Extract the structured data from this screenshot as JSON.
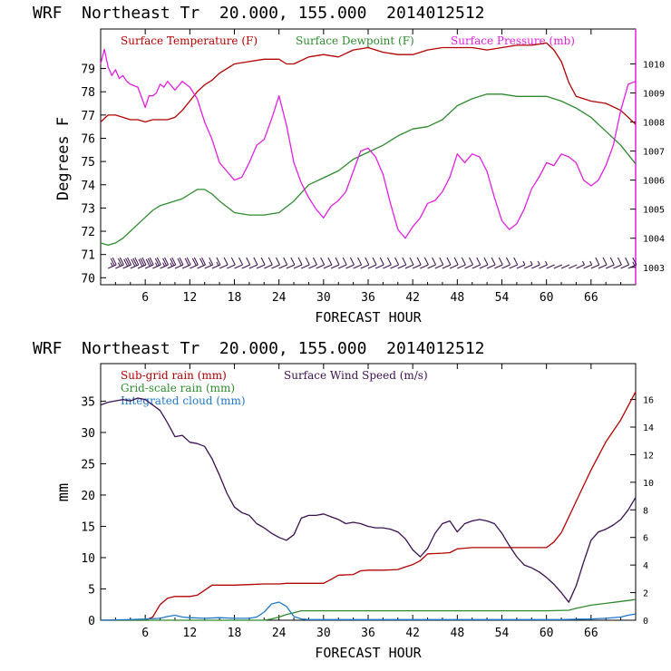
{
  "chart_data": [
    {
      "type": "line",
      "title": "WRF  Northeast Tr  20.000, 155.000  2014012512",
      "xlabel": "FORECAST HOUR",
      "ylabel": "Degrees F",
      "xlim": [
        0,
        72
      ],
      "ylim": [
        69.7,
        80.7
      ],
      "y2lim": [
        1002.4,
        1011.2
      ],
      "x_ticks": [
        6,
        12,
        18,
        24,
        30,
        36,
        42,
        48,
        54,
        60,
        66
      ],
      "y_ticks": [
        70,
        71,
        72,
        73,
        74,
        75,
        76,
        77,
        78,
        79
      ],
      "y2_ticks": [
        1003,
        1004,
        1005,
        1006,
        1007,
        1008,
        1009,
        1010
      ],
      "series": [
        {
          "name": "Surface Temperature (F)",
          "color": "#b30000",
          "axis": "left",
          "x": [
            0,
            1,
            2,
            3,
            4,
            5,
            6,
            7,
            8,
            9,
            10,
            11,
            12,
            13,
            14,
            15,
            16,
            18,
            20,
            22,
            24,
            25,
            26,
            28,
            30,
            32,
            34,
            36,
            38,
            40,
            42,
            44,
            46,
            48,
            50,
            52,
            54,
            56,
            58,
            60,
            61,
            62,
            63,
            64,
            66,
            68,
            70,
            72
          ],
          "y": [
            76.7,
            77.0,
            77.0,
            76.9,
            76.8,
            76.8,
            76.7,
            76.8,
            76.8,
            76.8,
            76.9,
            77.2,
            77.6,
            78.0,
            78.3,
            78.5,
            78.8,
            79.2,
            79.3,
            79.4,
            79.4,
            79.2,
            79.2,
            79.5,
            79.6,
            79.5,
            79.8,
            79.9,
            79.7,
            79.6,
            79.6,
            79.8,
            79.9,
            79.9,
            79.9,
            79.8,
            79.9,
            80.0,
            80.0,
            80.1,
            79.8,
            79.3,
            78.4,
            77.8,
            77.6,
            77.5,
            77.2,
            76.6
          ]
        },
        {
          "name": "Surface Dewpoint (F)",
          "color": "#2e8b2e",
          "axis": "left",
          "x": [
            0,
            1,
            2,
            3,
            4,
            5,
            6,
            7,
            8,
            9,
            10,
            11,
            12,
            13,
            14,
            15,
            16,
            18,
            20,
            22,
            24,
            26,
            28,
            30,
            32,
            34,
            36,
            38,
            40,
            42,
            44,
            46,
            48,
            50,
            52,
            54,
            56,
            58,
            60,
            62,
            64,
            66,
            68,
            70,
            72
          ],
          "y": [
            71.5,
            71.4,
            71.5,
            71.7,
            72.0,
            72.3,
            72.6,
            72.9,
            73.1,
            73.2,
            73.3,
            73.4,
            73.6,
            73.8,
            73.8,
            73.6,
            73.3,
            72.8,
            72.7,
            72.7,
            72.8,
            73.3,
            74.0,
            74.3,
            74.6,
            75.1,
            75.4,
            75.7,
            76.1,
            76.4,
            76.5,
            76.8,
            77.4,
            77.7,
            77.9,
            77.9,
            77.8,
            77.8,
            77.8,
            77.6,
            77.3,
            76.9,
            76.3,
            75.7,
            74.9
          ]
        },
        {
          "name": "Surface Pressure (mb)",
          "color": "#e020e0",
          "axis": "right",
          "x": [
            0,
            0.5,
            1,
            1.5,
            2,
            2.5,
            3,
            3.5,
            4,
            5,
            6,
            6.5,
            7,
            7.5,
            8,
            8.5,
            9,
            10,
            11,
            12,
            13,
            14,
            15,
            16,
            17,
            18,
            19,
            20,
            21,
            22,
            23,
            24,
            25,
            26,
            27,
            28,
            29,
            30,
            31,
            32,
            33,
            34,
            35,
            36,
            37,
            38,
            39,
            40,
            41,
            42,
            43,
            44,
            45,
            46,
            47,
            48,
            49,
            50,
            51,
            52,
            53,
            54,
            55,
            56,
            57,
            58,
            59,
            60,
            61,
            62,
            63,
            64,
            65,
            66,
            67,
            68,
            69,
            70,
            71,
            72
          ],
          "y": [
            1010.0,
            1010.5,
            1009.9,
            1009.6,
            1009.8,
            1009.5,
            1009.6,
            1009.4,
            1009.3,
            1009.2,
            1008.5,
            1008.9,
            1008.9,
            1009.0,
            1009.3,
            1009.2,
            1009.4,
            1009.1,
            1009.4,
            1009.2,
            1008.8,
            1008.0,
            1007.4,
            1006.6,
            1006.3,
            1006.0,
            1006.1,
            1006.6,
            1007.2,
            1007.4,
            1008.1,
            1008.9,
            1007.9,
            1006.6,
            1005.9,
            1005.4,
            1005.0,
            1004.7,
            1005.1,
            1005.3,
            1005.6,
            1006.3,
            1007.0,
            1007.1,
            1006.8,
            1006.2,
            1005.2,
            1004.3,
            1004.0,
            1004.4,
            1004.7,
            1005.2,
            1005.3,
            1005.6,
            1006.1,
            1006.9,
            1006.6,
            1006.9,
            1006.8,
            1006.3,
            1005.4,
            1004.6,
            1004.3,
            1004.5,
            1005.0,
            1005.7,
            1006.1,
            1006.6,
            1006.5,
            1006.9,
            1006.8,
            1006.6,
            1006.0,
            1005.8,
            1006.0,
            1006.5,
            1007.2,
            1008.4,
            1009.3,
            1009.4
          ]
        }
      ],
      "wind_barbs": {
        "color": "#3c1050",
        "hours": [
          1,
          2,
          3,
          4,
          5,
          6,
          7,
          8,
          9,
          10,
          11,
          12,
          13,
          14,
          15,
          16,
          17,
          18,
          19,
          20,
          21,
          22,
          23,
          24,
          25,
          26,
          27,
          28,
          29,
          30,
          31,
          32,
          33,
          34,
          35,
          36,
          37,
          38,
          39,
          40,
          41,
          42,
          43,
          44,
          45,
          46,
          47,
          48,
          49,
          50,
          51,
          52,
          53,
          54,
          55,
          56,
          57,
          58,
          59,
          60,
          61,
          62,
          63,
          64,
          65,
          66,
          67,
          68,
          69,
          70,
          71
        ],
        "speed_ms": [
          14,
          14,
          15,
          15,
          15,
          15,
          14,
          13,
          13,
          12,
          11,
          11,
          10,
          9,
          8,
          7,
          6,
          6,
          6,
          6,
          6,
          6,
          6,
          5,
          6,
          6,
          7,
          7,
          7,
          7,
          7,
          7,
          7,
          6,
          6,
          6,
          6,
          6,
          6,
          5,
          5,
          5,
          5,
          6,
          6,
          7,
          7,
          7,
          7,
          7,
          7,
          6,
          6,
          5,
          5,
          4,
          4,
          3,
          3,
          2,
          2,
          2,
          2,
          3,
          4,
          5,
          6,
          6,
          7,
          7,
          8
        ]
      },
      "legend_placement": "top",
      "grid": false
    },
    {
      "type": "line",
      "title": "WRF  Northeast Tr  20.000, 155.000  2014012512",
      "xlabel": "FORECAST HOUR",
      "ylabel": "mm",
      "xlim": [
        0,
        72
      ],
      "ylim": [
        0,
        41
      ],
      "y2lim": [
        0,
        18.6
      ],
      "x_ticks": [
        6,
        12,
        18,
        24,
        30,
        36,
        42,
        48,
        54,
        60,
        66
      ],
      "y_ticks": [
        0,
        5,
        10,
        15,
        20,
        25,
        30,
        35
      ],
      "y2_ticks": [
        0,
        2,
        4,
        6,
        8,
        10,
        12,
        14,
        16
      ],
      "series": [
        {
          "name": "Sub-grid rain (mm)",
          "color": "#b30000",
          "axis": "left",
          "x": [
            0,
            6,
            7,
            8,
            9,
            10,
            12,
            13,
            14,
            15,
            16,
            17,
            18,
            20,
            22,
            24,
            25,
            30,
            31,
            32,
            34,
            35,
            36,
            38,
            40,
            41,
            42,
            43,
            44,
            46,
            47,
            48,
            50,
            54,
            58,
            59,
            60,
            61,
            62,
            63,
            64,
            65,
            66,
            68,
            70,
            72
          ],
          "y": [
            0,
            0,
            0.5,
            2.5,
            3.5,
            3.8,
            3.8,
            4.0,
            4.8,
            5.6,
            5.6,
            5.6,
            5.6,
            5.7,
            5.8,
            5.8,
            5.9,
            5.9,
            6.5,
            7.2,
            7.3,
            7.9,
            8.0,
            8.0,
            8.1,
            8.5,
            8.9,
            9.5,
            10.6,
            10.7,
            10.8,
            11.4,
            11.6,
            11.6,
            11.6,
            11.6,
            11.6,
            12.5,
            14.0,
            16.5,
            19.0,
            21.5,
            24.0,
            28.5,
            32.0,
            36.5
          ]
        },
        {
          "name": "Grid-scale rain (mm)",
          "color": "#2e8b2e",
          "axis": "left",
          "x": [
            0,
            22,
            23,
            24,
            25,
            26,
            27,
            28,
            36,
            48,
            60,
            63,
            64,
            66,
            68,
            70,
            72
          ],
          "y": [
            0,
            0,
            0.2,
            0.5,
            0.9,
            1.2,
            1.5,
            1.5,
            1.5,
            1.5,
            1.5,
            1.6,
            1.9,
            2.4,
            2.7,
            3.0,
            3.3
          ]
        },
        {
          "name": "Integrated cloud (mm)",
          "color": "#1e78c8",
          "axis": "left",
          "x": [
            0,
            4,
            6,
            8,
            9,
            10,
            11,
            12,
            14,
            16,
            18,
            20,
            21,
            22,
            23,
            24,
            25,
            26,
            27,
            28,
            30,
            34,
            38,
            42,
            46,
            50,
            54,
            58,
            62,
            66,
            68,
            70,
            71,
            72
          ],
          "y": [
            0,
            0.1,
            0.2,
            0.3,
            0.6,
            0.8,
            0.5,
            0.4,
            0.3,
            0.4,
            0.3,
            0.3,
            0.5,
            1.3,
            2.6,
            2.9,
            2.2,
            0.6,
            0.2,
            0.1,
            0.1,
            0.1,
            0.1,
            0.1,
            0.1,
            0.1,
            0.1,
            0.1,
            0.1,
            0.2,
            0.3,
            0.5,
            0.8,
            1.0
          ]
        },
        {
          "name": "Surface Wind Speed (m/s)",
          "color": "#3c1050",
          "axis": "right",
          "x": [
            0,
            1,
            2,
            3,
            4,
            5,
            6,
            7,
            8,
            9,
            10,
            11,
            12,
            13,
            14,
            15,
            16,
            17,
            18,
            19,
            20,
            21,
            22,
            23,
            24,
            25,
            26,
            27,
            28,
            29,
            30,
            31,
            32,
            33,
            34,
            35,
            36,
            37,
            38,
            39,
            40,
            41,
            42,
            43,
            44,
            45,
            46,
            47,
            48,
            49,
            50,
            51,
            52,
            53,
            54,
            55,
            56,
            57,
            58,
            59,
            60,
            61,
            62,
            63,
            64,
            65,
            66,
            67,
            68,
            69,
            70,
            71,
            72
          ],
          "y": [
            15.6,
            15.8,
            15.9,
            16.0,
            15.9,
            16.1,
            16.0,
            15.6,
            15.2,
            14.3,
            13.3,
            13.4,
            12.9,
            12.8,
            12.6,
            11.7,
            10.5,
            9.2,
            8.2,
            7.8,
            7.6,
            7.0,
            6.7,
            6.3,
            6.0,
            5.8,
            6.2,
            7.4,
            7.6,
            7.6,
            7.7,
            7.5,
            7.3,
            7.0,
            7.1,
            7.0,
            6.8,
            6.7,
            6.7,
            6.6,
            6.4,
            5.9,
            5.1,
            4.6,
            5.2,
            6.3,
            7.0,
            7.2,
            6.4,
            7.0,
            7.2,
            7.3,
            7.2,
            7.0,
            6.3,
            5.4,
            4.6,
            4.0,
            3.8,
            3.5,
            3.1,
            2.6,
            2.0,
            1.3,
            2.5,
            4.2,
            5.8,
            6.4,
            6.6,
            6.9,
            7.3,
            8.0,
            8.9
          ]
        }
      ],
      "legend_placement": "top-left",
      "grid": false
    }
  ]
}
